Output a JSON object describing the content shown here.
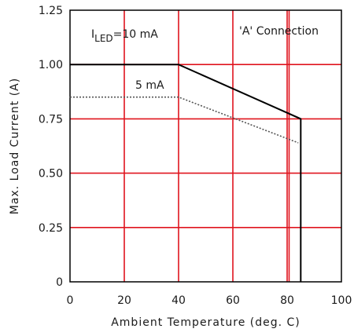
{
  "chart_data": {
    "type": "line",
    "xlabel": "Ambient Temperature (deg. C)",
    "ylabel": "Max. Load Current (A)",
    "xlim": [
      0,
      100
    ],
    "ylim": [
      0,
      1.25
    ],
    "x_ticks": [
      0,
      20,
      40,
      60,
      80,
      100
    ],
    "x_tick_labels": [
      "0",
      "20",
      "40",
      "60",
      "80",
      "100"
    ],
    "y_ticks": [
      0,
      0.25,
      0.5,
      0.75,
      1.0,
      1.25
    ],
    "y_tick_labels": [
      "0",
      "0.25",
      "0.50",
      "0.75",
      "1.00",
      "1.25"
    ],
    "grid": true,
    "grid_color": "#e0141e",
    "extra_vlines": [
      80
    ],
    "series": [
      {
        "name": "I_LED=10 mA",
        "style": "solid",
        "color": "#000000",
        "x": [
          0,
          40,
          85,
          85
        ],
        "y": [
          1.0,
          1.0,
          0.75,
          0
        ]
      },
      {
        "name": "5 mA",
        "style": "dotted",
        "color": "#555555",
        "x": [
          0,
          40,
          84
        ],
        "y": [
          0.85,
          0.85,
          0.64
        ]
      }
    ],
    "annotations": {
      "connection": "'A' Connection",
      "iled_main": "I",
      "iled_sub": "LED",
      "iled_rest": "=10 mA",
      "five_ma": "5 mA"
    }
  }
}
